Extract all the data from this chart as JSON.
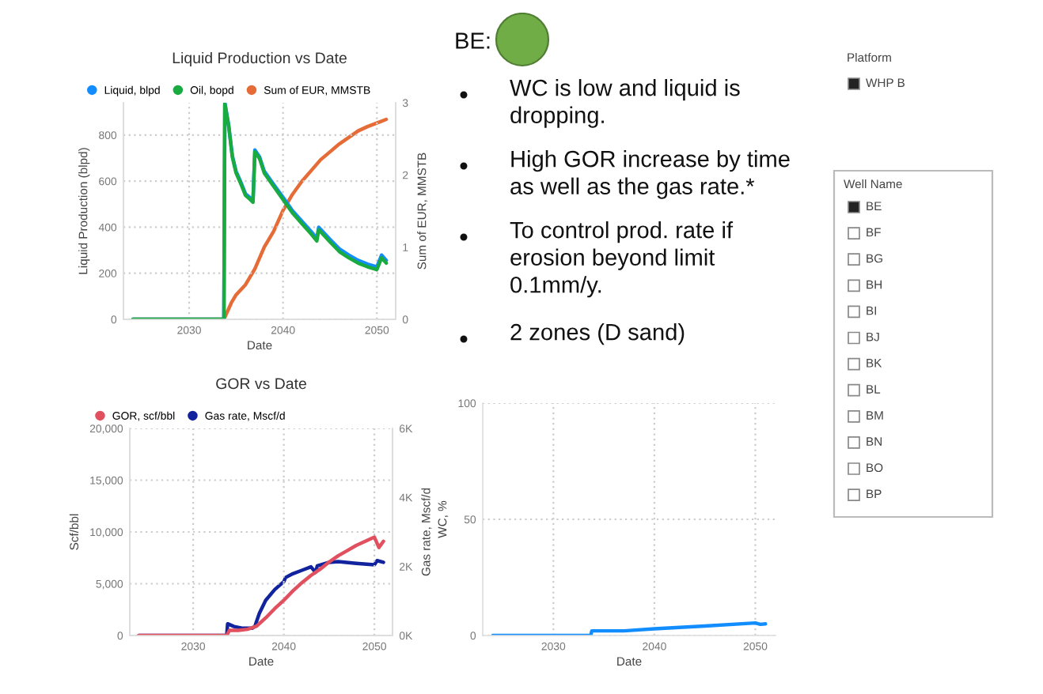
{
  "chart_data": [
    {
      "type": "line",
      "title": "Liquid Production vs Date",
      "xlabel": "Date",
      "ylabel": "Liquid Production (blpd)",
      "y2label": "Sum of EUR, MMSTB",
      "xlim": [
        2023,
        2052
      ],
      "xticks": [
        2030,
        2040,
        2050
      ],
      "ylim": [
        0,
        940
      ],
      "yticks": [
        0,
        200,
        400,
        600,
        800
      ],
      "y2lim": [
        0,
        3
      ],
      "y2ticks": [
        0,
        1,
        2,
        3
      ],
      "grid": true,
      "legend": "top left",
      "x": [
        2024,
        2033.7,
        2033.8,
        2034.2,
        2034.6,
        2035,
        2035.5,
        2036,
        2036.5,
        2036.8,
        2037,
        2037.5,
        2038,
        2039,
        2040,
        2041,
        2042,
        2043,
        2043.6,
        2043.8,
        2045,
        2046,
        2047,
        2048,
        2049,
        2050,
        2050.5,
        2051
      ],
      "series": [
        {
          "name": "Liquid, blpd",
          "color": "#118dff",
          "values": [
            0,
            0,
            940,
            845,
            710,
            642,
            596,
            545,
            528,
            516,
            735,
            705,
            643,
            586,
            530,
            472,
            426,
            381,
            351,
            400,
            347,
            306,
            279,
            256,
            240,
            228,
            279,
            256
          ]
        },
        {
          "name": "Oil, bopd",
          "color": "#1aab40",
          "values": [
            0,
            0,
            935,
            842,
            704,
            635,
            589,
            538,
            520,
            508,
            727,
            697,
            635,
            577,
            520,
            462,
            416,
            370,
            340,
            389,
            336,
            294,
            267,
            244,
            228,
            216,
            267,
            244
          ]
        },
        {
          "name": "Sum of EUR, MMSTB",
          "color": "#e66c37",
          "axis": "y2",
          "x": [
            2024,
            2033.7,
            2034.5,
            2035,
            2036,
            2037,
            2038,
            2039,
            2040,
            2041,
            2042,
            2043,
            2044,
            2045,
            2046,
            2047,
            2048,
            2049,
            2050,
            2051
          ],
          "values": [
            0,
            0,
            0.23,
            0.34,
            0.48,
            0.7,
            1.0,
            1.22,
            1.51,
            1.73,
            1.91,
            2.06,
            2.21,
            2.32,
            2.43,
            2.52,
            2.61,
            2.67,
            2.72,
            2.77
          ]
        }
      ]
    },
    {
      "type": "line",
      "title": "GOR vs Date",
      "xlabel": "Date",
      "ylabel": "Scf/bbl",
      "y2label": "Gas rate, Mscf/d",
      "xlim": [
        2023,
        2052
      ],
      "xticks": [
        2030,
        2040,
        2050
      ],
      "ylim": [
        0,
        20000
      ],
      "yticks": [
        0,
        {
          "value": 5000,
          "label": "5,000"
        },
        {
          "value": 10000,
          "label": "10,000"
        },
        {
          "value": 15000,
          "label": "15,000"
        },
        {
          "value": 20000,
          "label": "20,000"
        }
      ],
      "y2lim": [
        0,
        6000
      ],
      "y2ticks": [
        {
          "value": 0,
          "label": "0K"
        },
        {
          "value": 2000,
          "label": "2K"
        },
        {
          "value": 4000,
          "label": "4K"
        },
        {
          "value": 6000,
          "label": "6K"
        }
      ],
      "grid": true,
      "legend": "top left",
      "series": [
        {
          "name": "GOR, scf/bbl",
          "color": "#e0505e",
          "x": [
            2024,
            2033.7,
            2034,
            2035,
            2036,
            2037,
            2038,
            2039,
            2040,
            2041,
            2042,
            2043,
            2044,
            2045,
            2046,
            2047,
            2048,
            2049,
            2050,
            2050.5,
            2051
          ],
          "values": [
            0,
            0,
            500,
            500,
            600,
            900,
            1700,
            2600,
            3400,
            4300,
            5100,
            5800,
            6400,
            7100,
            7700,
            8200,
            8700,
            9100,
            9500,
            8500,
            9100
          ]
        },
        {
          "name": "Gas rate, Mscf/d",
          "color": "#12239e",
          "axis": "y2",
          "x": [
            2024,
            2033.7,
            2033.8,
            2034.5,
            2035.5,
            2036.5,
            2036.8,
            2037.3,
            2038,
            2039,
            2040,
            2040.2,
            2041,
            2042,
            2043,
            2043.5,
            2043.7,
            2045,
            2046,
            2048,
            2050,
            2050.3,
            2051
          ],
          "values": [
            0,
            0,
            340,
            260,
            210,
            210,
            260,
            640,
            1020,
            1330,
            1560,
            1680,
            1790,
            1890,
            1990,
            1830,
            2020,
            2120,
            2140,
            2090,
            2050,
            2170,
            2120
          ]
        }
      ]
    },
    {
      "type": "line",
      "xlabel": "Date",
      "ylabel": "WC, %",
      "xlim": [
        2023,
        2052
      ],
      "xticks": [
        2030,
        2040,
        2050
      ],
      "ylim": [
        0,
        100
      ],
      "yticks": [
        0,
        50,
        100
      ],
      "grid": true,
      "series": [
        {
          "color": "#118dff",
          "x": [
            2024,
            2033.7,
            2033.8,
            2037,
            2040,
            2045,
            2050,
            2050.5,
            2051
          ],
          "values": [
            0,
            0,
            2.0,
            2.0,
            2.9,
            4.1,
            5.4,
            4.8,
            5.0
          ]
        }
      ]
    },
    {
      "type": "other",
      "title": "BE:",
      "annotations": [
        "WC is low and liquid is dropping.",
        "High GOR increase by time as well as the gas rate.*",
        "To control prod. rate if erosion beyond limit 0.1mm/y.",
        "2 zones (D sand)"
      ]
    },
    {
      "type": "other",
      "title": "Platform",
      "categories": [
        "WHP B"
      ],
      "colors": [
        "#222222"
      ]
    },
    {
      "type": "other",
      "title": "Well Name",
      "categories": [
        "BE",
        "BF",
        "BG",
        "BH",
        "BI",
        "BJ",
        "BK",
        "BL",
        "BM",
        "BN",
        "BO",
        "BP"
      ],
      "colors": [
        "#222222",
        "#ffffff",
        "#ffffff",
        "#ffffff",
        "#ffffff",
        "#ffffff",
        "#ffffff",
        "#ffffff",
        "#ffffff",
        "#ffffff",
        "#ffffff",
        "#ffffff"
      ]
    }
  ]
}
